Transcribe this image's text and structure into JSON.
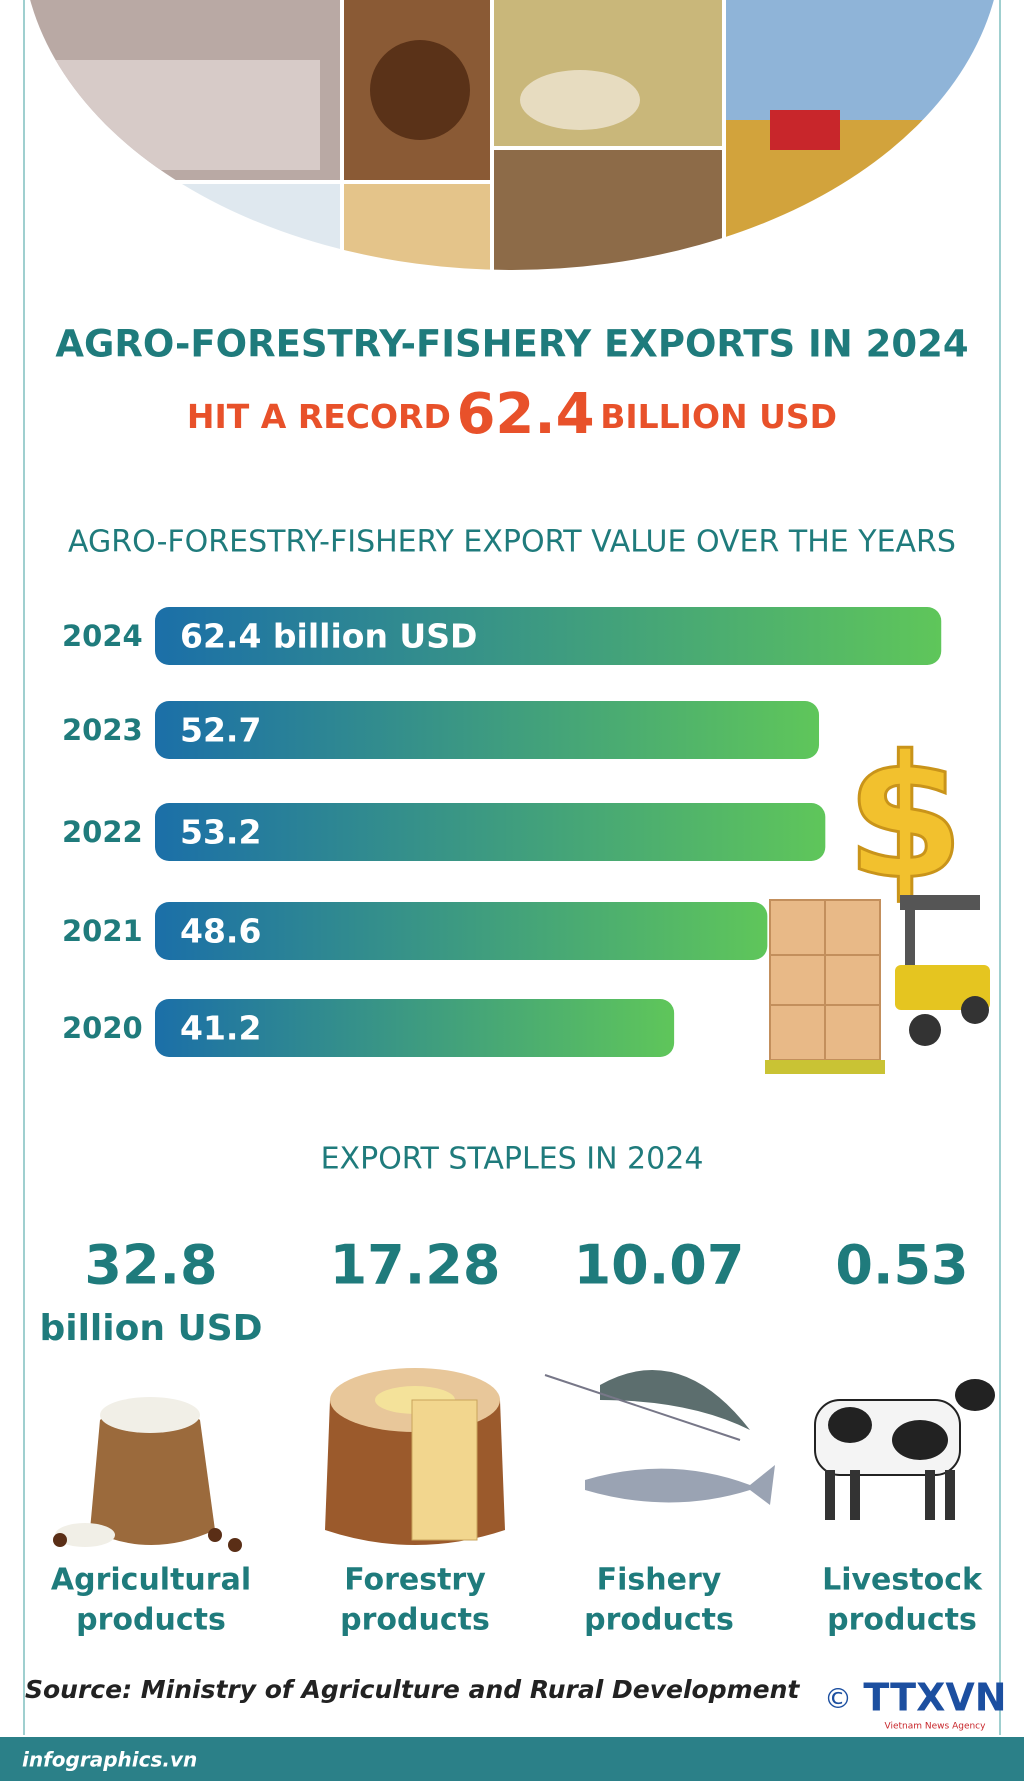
{
  "header": {
    "title": "AGRO-FORESTRY-FISHERY EXPORTS IN 2024",
    "subtitle_before": "HIT A RECORD",
    "subtitle_value": "62.4",
    "subtitle_after": "BILLION USD"
  },
  "chart_data": {
    "type": "bar",
    "orientation": "horizontal",
    "title": "AGRO-FORESTRY-FISHERY EXPORT VALUE OVER THE YEARS",
    "categories": [
      "2024",
      "2023",
      "2022",
      "2021",
      "2020"
    ],
    "values": [
      62.4,
      52.7,
      53.2,
      48.6,
      41.2
    ],
    "value_labels": [
      "62.4 billion USD",
      "52.7",
      "53.2",
      "48.6",
      "41.2"
    ],
    "color_start": "#1b6fa8",
    "color_end": "#5fc65a"
  },
  "staples": {
    "title": "EXPORT STAPLES IN 2024",
    "unit": "billion USD",
    "items": [
      {
        "value": 32.8,
        "label": [
          "Agricultural",
          "products"
        ]
      },
      {
        "value": 17.28,
        "label": [
          "Forestry",
          "products"
        ]
      },
      {
        "value": 10.07,
        "label": [
          "Fishery",
          "products"
        ]
      },
      {
        "value": 0.53,
        "label": [
          "Livestock",
          "products"
        ]
      }
    ]
  },
  "source": "Source: Ministry of Agriculture and Rural Development",
  "footer": {
    "site": "infographics.vn",
    "copyright": "©",
    "logo": "TTXVN",
    "agency": "Vietnam News Agency"
  }
}
